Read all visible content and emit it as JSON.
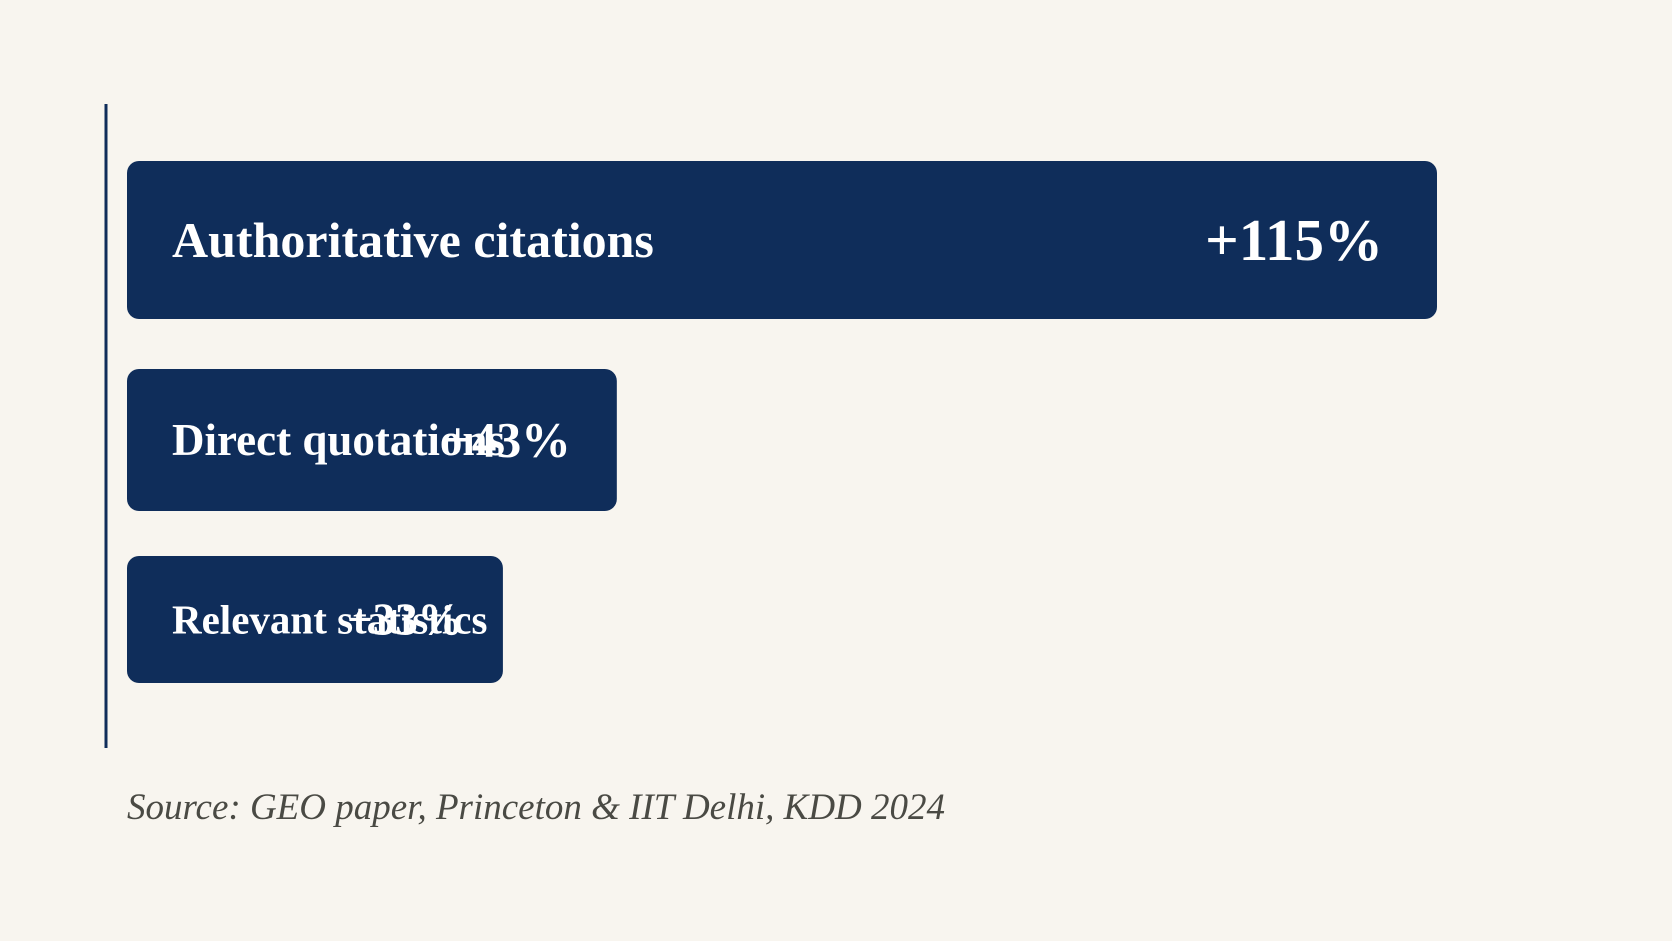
{
  "chart_data": {
    "type": "bar",
    "orientation": "horizontal",
    "categories": [
      "Authoritative citations",
      "Direct quotations",
      "Relevant statistics"
    ],
    "values": [
      115,
      43,
      33
    ],
    "value_labels": [
      "+115%",
      "+43%",
      "+33%"
    ],
    "unit": "%",
    "grid": false,
    "legend": "none"
  },
  "source": "Source: GEO paper, Princeton & IIT Delhi, KDD 2024",
  "colors": {
    "background": "#f8f5ef",
    "bar": "#0f2d5a",
    "bar_text": "#ffffff",
    "axis": "#0f2d5a",
    "source_text": "#4a4a44"
  }
}
